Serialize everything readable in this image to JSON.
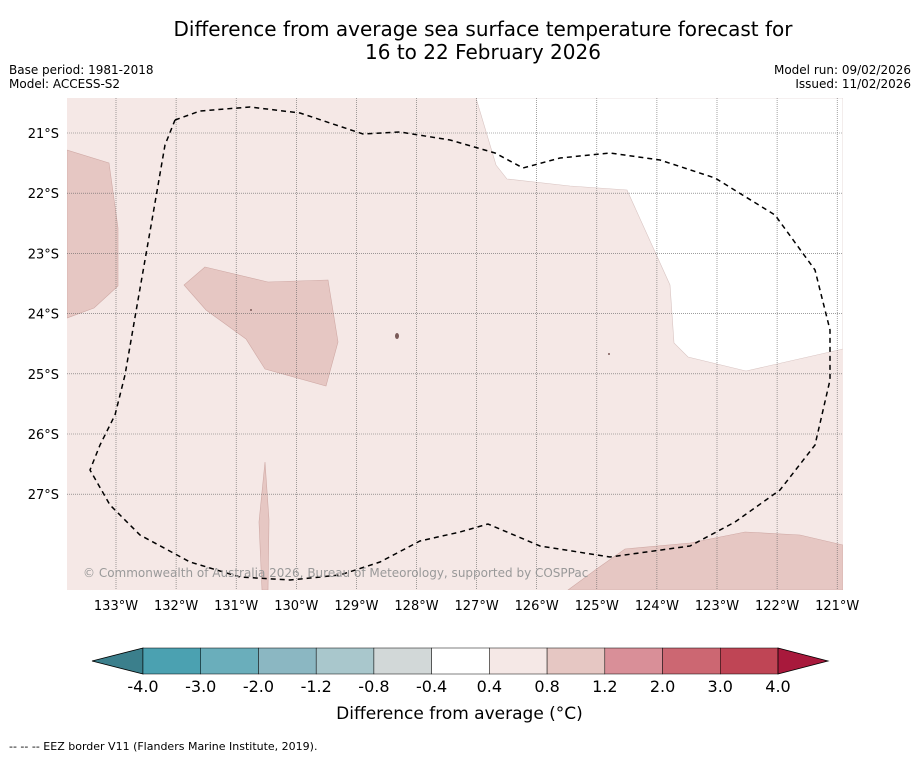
{
  "title_line1": "Difference from average sea surface temperature forecast for",
  "title_line2": "16 to 22 February 2026",
  "meta_left": {
    "base_period": "Base period: 1981-2018",
    "model": "Model: ACCESS-S2"
  },
  "meta_right": {
    "model_run": "Model run: 09/02/2026",
    "issued": "Issued: 11/02/2026"
  },
  "map": {
    "lat_labels": [
      "21°S",
      "22°S",
      "23°S",
      "24°S",
      "25°S",
      "26°S",
      "27°S"
    ],
    "lon_labels": [
      "133°W",
      "132°W",
      "131°W",
      "130°W",
      "129°W",
      "128°W",
      "127°W",
      "126°W",
      "125°W",
      "124°W",
      "123°W",
      "122°W",
      "121°W"
    ],
    "copyright": "© Commonwealth of Australia 2026, Bureau of Meteorology, supported by COSPPac",
    "colors": {
      "band_0_4_to_0_8": "#f5e8e6",
      "band_0_8_to_1_2": "#e6c7c3",
      "neutral": "#ffffff"
    }
  },
  "colorbar": {
    "ticks": [
      "-4.0",
      "-3.0",
      "-2.0",
      "-1.2",
      "-0.8",
      "-0.4",
      "0.4",
      "0.8",
      "1.2",
      "2.0",
      "3.0",
      "4.0"
    ],
    "colors": [
      "#3b7f8c",
      "#4ba1b1",
      "#6aaebb",
      "#8bb7c2",
      "#a9c7cc",
      "#d2d8d8",
      "#ffffff",
      "#f5e8e6",
      "#e6c7c3",
      "#d98f98",
      "#cc6772",
      "#bf4555",
      "#a8193c"
    ],
    "label": "Difference from average (°C)"
  },
  "footer": "-- -- -- EEZ border V11 (Flanders Marine Institute, 2019)."
}
